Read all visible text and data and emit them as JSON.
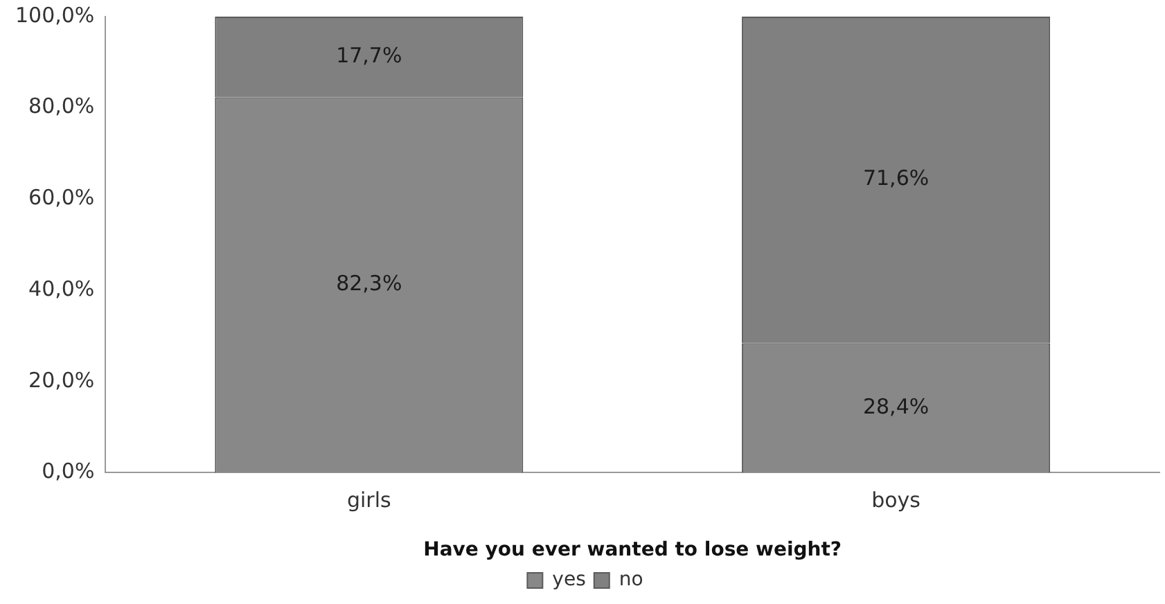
{
  "chart_data": {
    "type": "bar",
    "stacked": true,
    "xlabel": "Have you ever wanted to lose weight?",
    "categories": [
      "girls",
      "boys"
    ],
    "series": [
      {
        "name": "yes",
        "color": "#888888",
        "values": [
          82.3,
          28.4
        ],
        "value_labels": [
          "82,3%",
          "28,4%"
        ]
      },
      {
        "name": "no",
        "color": "#808080",
        "values": [
          17.7,
          71.6
        ],
        "value_labels": [
          "17,7%",
          "71,6%"
        ]
      }
    ],
    "ylim": [
      0,
      100
    ],
    "yticks": [
      {
        "value": 0,
        "label": "0,0%"
      },
      {
        "value": 20,
        "label": "20,0%"
      },
      {
        "value": 40,
        "label": "40,0%"
      },
      {
        "value": 60,
        "label": "60,0%"
      },
      {
        "value": 80,
        "label": "80,0%"
      },
      {
        "value": 100,
        "label": "100,0%"
      }
    ],
    "grid": false,
    "legend": "bottom"
  }
}
